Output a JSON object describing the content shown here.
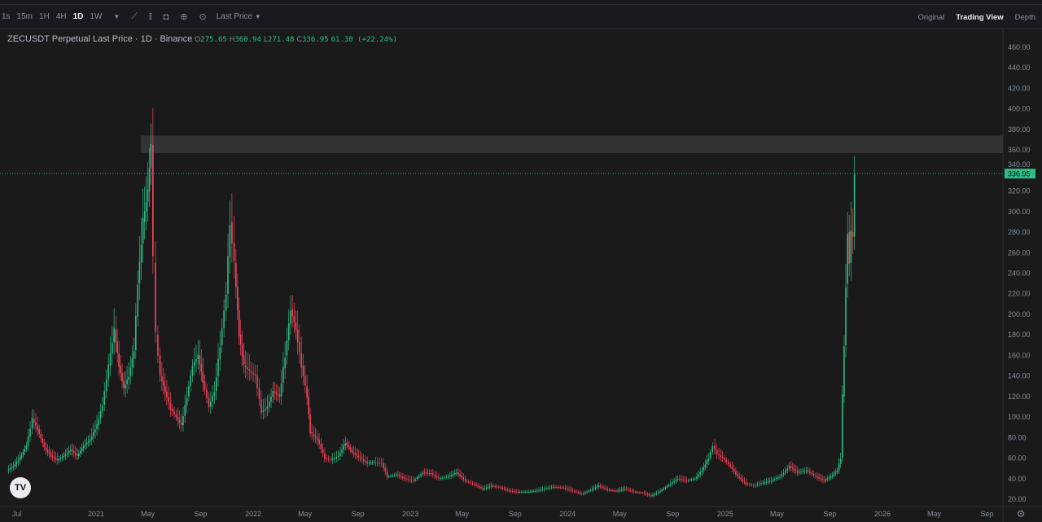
{
  "toolbar": {
    "intervals": [
      "1s",
      "15m",
      "1H",
      "4H",
      "1D",
      "1W"
    ],
    "active_interval": "1D",
    "price_type": "Last Price",
    "views": [
      "Original",
      "Trading View",
      "Depth"
    ],
    "active_view": "Trading View"
  },
  "legend": {
    "title": "ZECUSDT Perpetual Last Price · 1D · Binance",
    "o_label": "O",
    "o": "275.65",
    "h_label": "H",
    "h": "360.94",
    "l_label": "L",
    "l": "271.48",
    "c_label": "C",
    "c": "336.95",
    "change": "61.30 (+22.24%)"
  },
  "logo": "TV",
  "colors": {
    "up": "#2ebd85",
    "down": "#f6465d",
    "background": "#1a1a1a",
    "zone": "#3a3a3a"
  },
  "chart_data": {
    "type": "candlestick",
    "symbol": "ZECUSDT",
    "last_price": 336.95,
    "ylim": [
      10,
      470
    ],
    "y_ticks": [
      20,
      40,
      60,
      80,
      100,
      120,
      140,
      160,
      180,
      200,
      220,
      240,
      260,
      280,
      300,
      320,
      340,
      360,
      380,
      400,
      420,
      440,
      460
    ],
    "x_ticks": [
      [
        "2020-07-01",
        "Jul"
      ],
      [
        "2021-01-01",
        "2021"
      ],
      [
        "2021-05-01",
        "May"
      ],
      [
        "2021-09-01",
        "Sep"
      ],
      [
        "2022-01-01",
        "2022"
      ],
      [
        "2022-05-01",
        "May"
      ],
      [
        "2022-09-01",
        "Sep"
      ],
      [
        "2023-01-01",
        "2023"
      ],
      [
        "2023-05-01",
        "May"
      ],
      [
        "2023-09-01",
        "Sep"
      ],
      [
        "2024-01-01",
        "2024"
      ],
      [
        "2024-05-01",
        "May"
      ],
      [
        "2024-09-01",
        "Sep"
      ],
      [
        "2025-01-01",
        "2025"
      ],
      [
        "2025-05-01",
        "May"
      ],
      [
        "2025-09-01",
        "Sep"
      ],
      [
        "2026-01-01",
        "2026"
      ],
      [
        "2026-05-01",
        "May"
      ],
      [
        "2026-09-01",
        "Sep"
      ]
    ],
    "resistance_zone": {
      "from_date": "2021-04-15",
      "low": 357,
      "high": 374
    },
    "closes": [
      [
        "2020-06-10",
        48
      ],
      [
        "2020-06-25",
        52
      ],
      [
        "2020-07-10",
        60
      ],
      [
        "2020-07-25",
        72
      ],
      [
        "2020-08-08",
        98
      ],
      [
        "2020-08-20",
        88
      ],
      [
        "2020-09-05",
        70
      ],
      [
        "2020-09-20",
        62
      ],
      [
        "2020-10-05",
        58
      ],
      [
        "2020-10-20",
        62
      ],
      [
        "2020-11-05",
        68
      ],
      [
        "2020-11-20",
        62
      ],
      [
        "2020-12-05",
        72
      ],
      [
        "2020-12-20",
        78
      ],
      [
        "2021-01-05",
        92
      ],
      [
        "2021-01-18",
        112
      ],
      [
        "2021-02-01",
        150
      ],
      [
        "2021-02-14",
        185
      ],
      [
        "2021-02-25",
        150
      ],
      [
        "2021-03-08",
        128
      ],
      [
        "2021-03-20",
        140
      ],
      [
        "2021-04-01",
        165
      ],
      [
        "2021-04-10",
        230
      ],
      [
        "2021-04-22",
        290
      ],
      [
        "2021-05-03",
        320
      ],
      [
        "2021-05-10",
        365
      ],
      [
        "2021-05-16",
        250
      ],
      [
        "2021-05-22",
        180
      ],
      [
        "2021-06-01",
        140
      ],
      [
        "2021-06-12",
        125
      ],
      [
        "2021-06-25",
        108
      ],
      [
        "2021-07-08",
        100
      ],
      [
        "2021-07-20",
        92
      ],
      [
        "2021-08-02",
        120
      ],
      [
        "2021-08-15",
        150
      ],
      [
        "2021-08-28",
        160
      ],
      [
        "2021-09-08",
        135
      ],
      [
        "2021-09-22",
        110
      ],
      [
        "2021-10-05",
        125
      ],
      [
        "2021-10-18",
        170
      ],
      [
        "2021-11-01",
        220
      ],
      [
        "2021-11-10",
        290
      ],
      [
        "2021-11-20",
        250
      ],
      [
        "2021-12-01",
        180
      ],
      [
        "2021-12-12",
        150
      ],
      [
        "2021-12-25",
        145
      ],
      [
        "2022-01-08",
        140
      ],
      [
        "2022-01-22",
        105
      ],
      [
        "2022-02-05",
        110
      ],
      [
        "2022-02-18",
        125
      ],
      [
        "2022-03-05",
        120
      ],
      [
        "2022-03-18",
        160
      ],
      [
        "2022-03-31",
        205
      ],
      [
        "2022-04-12",
        185
      ],
      [
        "2022-04-25",
        150
      ],
      [
        "2022-05-08",
        120
      ],
      [
        "2022-05-15",
        85
      ],
      [
        "2022-06-01",
        78
      ],
      [
        "2022-06-18",
        60
      ],
      [
        "2022-07-02",
        58
      ],
      [
        "2022-07-20",
        62
      ],
      [
        "2022-08-05",
        75
      ],
      [
        "2022-08-20",
        66
      ],
      [
        "2022-09-08",
        60
      ],
      [
        "2022-09-25",
        55
      ],
      [
        "2022-10-10",
        56
      ],
      [
        "2022-10-28",
        55
      ],
      [
        "2022-11-10",
        42
      ],
      [
        "2022-12-01",
        44
      ],
      [
        "2022-12-20",
        40
      ],
      [
        "2023-01-10",
        38
      ],
      [
        "2023-02-01",
        46
      ],
      [
        "2023-02-20",
        45
      ],
      [
        "2023-03-10",
        40
      ],
      [
        "2023-04-01",
        42
      ],
      [
        "2023-04-20",
        46
      ],
      [
        "2023-05-10",
        38
      ],
      [
        "2023-06-01",
        34
      ],
      [
        "2023-06-20",
        30
      ],
      [
        "2023-07-10",
        33
      ],
      [
        "2023-08-01",
        31
      ],
      [
        "2023-08-20",
        28
      ],
      [
        "2023-09-10",
        27
      ],
      [
        "2023-10-01",
        27
      ],
      [
        "2023-10-20",
        28
      ],
      [
        "2023-11-10",
        30
      ],
      [
        "2023-12-01",
        32
      ],
      [
        "2023-12-25",
        31
      ],
      [
        "2024-01-15",
        28
      ],
      [
        "2024-02-05",
        25
      ],
      [
        "2024-02-25",
        29
      ],
      [
        "2024-03-15",
        33
      ],
      [
        "2024-04-05",
        29
      ],
      [
        "2024-04-25",
        28
      ],
      [
        "2024-05-15",
        30
      ],
      [
        "2024-06-05",
        27
      ],
      [
        "2024-06-25",
        26
      ],
      [
        "2024-07-15",
        23
      ],
      [
        "2024-08-05",
        28
      ],
      [
        "2024-08-25",
        34
      ],
      [
        "2024-09-15",
        40
      ],
      [
        "2024-10-05",
        38
      ],
      [
        "2024-10-25",
        40
      ],
      [
        "2024-11-10",
        48
      ],
      [
        "2024-11-25",
        60
      ],
      [
        "2024-12-05",
        72
      ],
      [
        "2024-12-15",
        64
      ],
      [
        "2024-12-28",
        60
      ],
      [
        "2025-01-15",
        52
      ],
      [
        "2025-02-01",
        42
      ],
      [
        "2025-02-20",
        35
      ],
      [
        "2025-03-10",
        33
      ],
      [
        "2025-04-01",
        36
      ],
      [
        "2025-04-20",
        38
      ],
      [
        "2025-05-10",
        42
      ],
      [
        "2025-06-01",
        52
      ],
      [
        "2025-06-20",
        46
      ],
      [
        "2025-07-10",
        48
      ],
      [
        "2025-08-01",
        42
      ],
      [
        "2025-08-20",
        38
      ],
      [
        "2025-09-05",
        42
      ],
      [
        "2025-09-20",
        48
      ],
      [
        "2025-09-28",
        60
      ],
      [
        "2025-10-02",
        120
      ],
      [
        "2025-10-06",
        170
      ],
      [
        "2025-10-10",
        230
      ],
      [
        "2025-10-14",
        280
      ],
      [
        "2025-10-18",
        250
      ],
      [
        "2025-10-22",
        280
      ],
      [
        "2025-10-26",
        275.65
      ],
      [
        "2025-10-30",
        336.95
      ]
    ]
  }
}
